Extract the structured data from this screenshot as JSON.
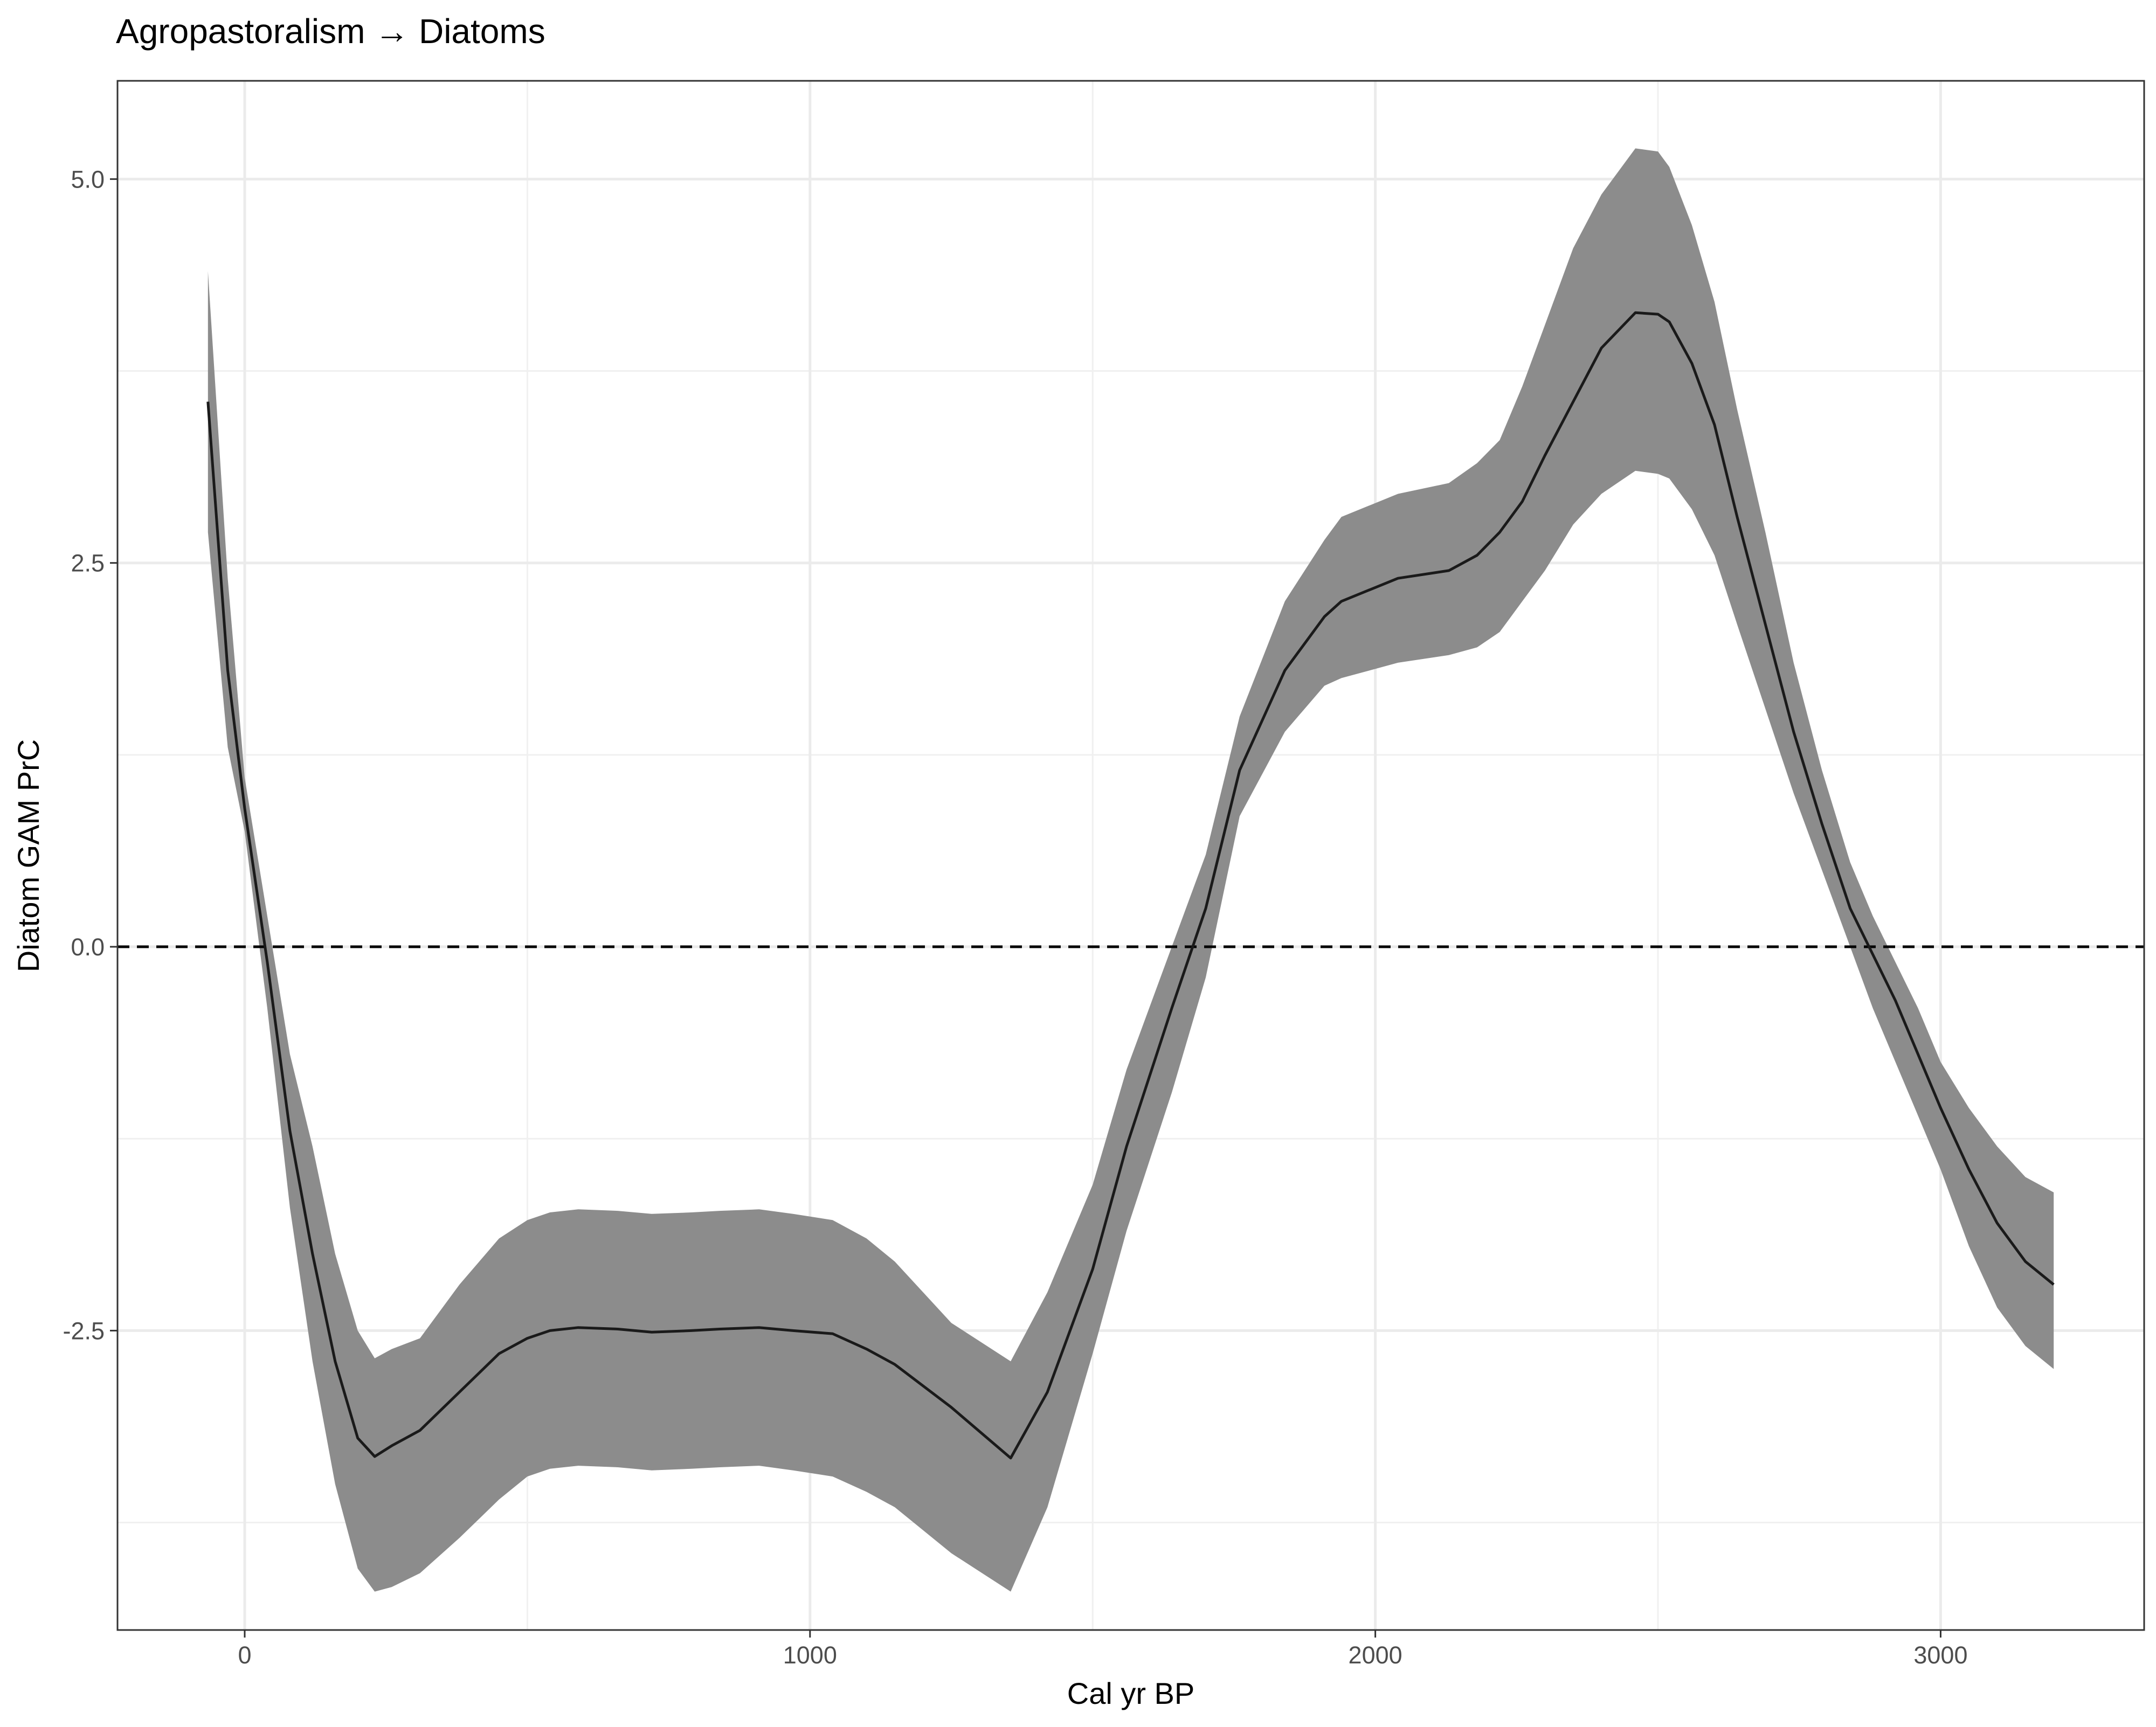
{
  "chart_data": {
    "type": "line",
    "title": "Agropastoralism → Diatoms",
    "xlabel": "Cal yr BP",
    "ylabel": "Diatom GAM PrC",
    "xlim": [
      -225,
      3360
    ],
    "ylim": [
      -4.45,
      5.64
    ],
    "x_ticks": [
      0,
      1000,
      2000,
      3000
    ],
    "x_tick_labels": [
      "0",
      "1000",
      "2000",
      "3000"
    ],
    "y_ticks": [
      -2.5,
      0,
      2.5,
      5
    ],
    "y_tick_labels": [
      "-2.5",
      "0.0",
      "2.5",
      "5.0"
    ],
    "grid": true,
    "reference_line": {
      "y": 0,
      "style": "dashed"
    },
    "ribbon_color": "#8c8c8c",
    "line_color": "#1a1a1a",
    "series": [
      {
        "x": [
          -65,
          -30,
          0,
          40,
          80,
          120,
          160,
          200,
          230,
          260,
          310,
          380,
          450,
          500,
          540,
          590,
          660,
          720,
          790,
          840,
          910,
          970,
          1040,
          1100,
          1150,
          1250,
          1355,
          1420,
          1500,
          1560,
          1640,
          1700,
          1760,
          1840,
          1910,
          1940,
          2040,
          2130,
          2180,
          2220,
          2260,
          2300,
          2350,
          2400,
          2460,
          2500,
          2520,
          2560,
          2600,
          2640,
          2690,
          2740,
          2790,
          2840,
          2880,
          2920,
          2960,
          3000,
          3050,
          3100,
          3150,
          3200
        ],
        "y": [
          3.55,
          1.8,
          0.9,
          -0.1,
          -1.2,
          -2.0,
          -2.7,
          -3.2,
          -3.32,
          -3.25,
          -3.15,
          -2.9,
          -2.65,
          -2.55,
          -2.5,
          -2.48,
          -2.49,
          -2.51,
          -2.5,
          -2.49,
          -2.48,
          -2.5,
          -2.52,
          -2.62,
          -2.72,
          -3.0,
          -3.33,
          -2.9,
          -2.1,
          -1.3,
          -0.4,
          0.25,
          1.15,
          1.8,
          2.15,
          2.25,
          2.4,
          2.45,
          2.55,
          2.7,
          2.9,
          3.2,
          3.55,
          3.9,
          4.13,
          4.12,
          4.07,
          3.8,
          3.4,
          2.8,
          2.1,
          1.4,
          0.8,
          0.25,
          -0.05,
          -0.35,
          -0.7,
          -1.05,
          -1.45,
          -1.8,
          -2.05,
          -2.2
        ],
        "lower": [
          2.7,
          1.3,
          0.75,
          -0.4,
          -1.7,
          -2.7,
          -3.5,
          -4.05,
          -4.2,
          -4.17,
          -4.08,
          -3.85,
          -3.6,
          -3.45,
          -3.4,
          -3.38,
          -3.39,
          -3.41,
          -3.4,
          -3.39,
          -3.38,
          -3.41,
          -3.45,
          -3.55,
          -3.65,
          -3.95,
          -4.2,
          -3.65,
          -2.65,
          -1.85,
          -0.95,
          -0.2,
          0.85,
          1.4,
          1.7,
          1.75,
          1.85,
          1.9,
          1.95,
          2.05,
          2.25,
          2.45,
          2.75,
          2.95,
          3.1,
          3.08,
          3.05,
          2.85,
          2.55,
          2.1,
          1.55,
          1.0,
          0.5,
          0.0,
          -0.4,
          -0.75,
          -1.1,
          -1.45,
          -1.95,
          -2.35,
          -2.6,
          -2.75
        ],
        "upper": [
          4.4,
          2.4,
          1.1,
          0.2,
          -0.7,
          -1.3,
          -2.0,
          -2.5,
          -2.68,
          -2.62,
          -2.55,
          -2.2,
          -1.9,
          -1.78,
          -1.73,
          -1.71,
          -1.72,
          -1.74,
          -1.73,
          -1.72,
          -1.71,
          -1.74,
          -1.78,
          -1.9,
          -2.05,
          -2.45,
          -2.7,
          -2.25,
          -1.55,
          -0.8,
          0.0,
          0.6,
          1.5,
          2.25,
          2.65,
          2.8,
          2.95,
          3.02,
          3.15,
          3.3,
          3.65,
          4.05,
          4.55,
          4.9,
          5.2,
          5.18,
          5.08,
          4.7,
          4.2,
          3.5,
          2.7,
          1.85,
          1.15,
          0.55,
          0.2,
          -0.1,
          -0.4,
          -0.75,
          -1.05,
          -1.3,
          -1.5,
          -1.6
        ]
      }
    ]
  }
}
